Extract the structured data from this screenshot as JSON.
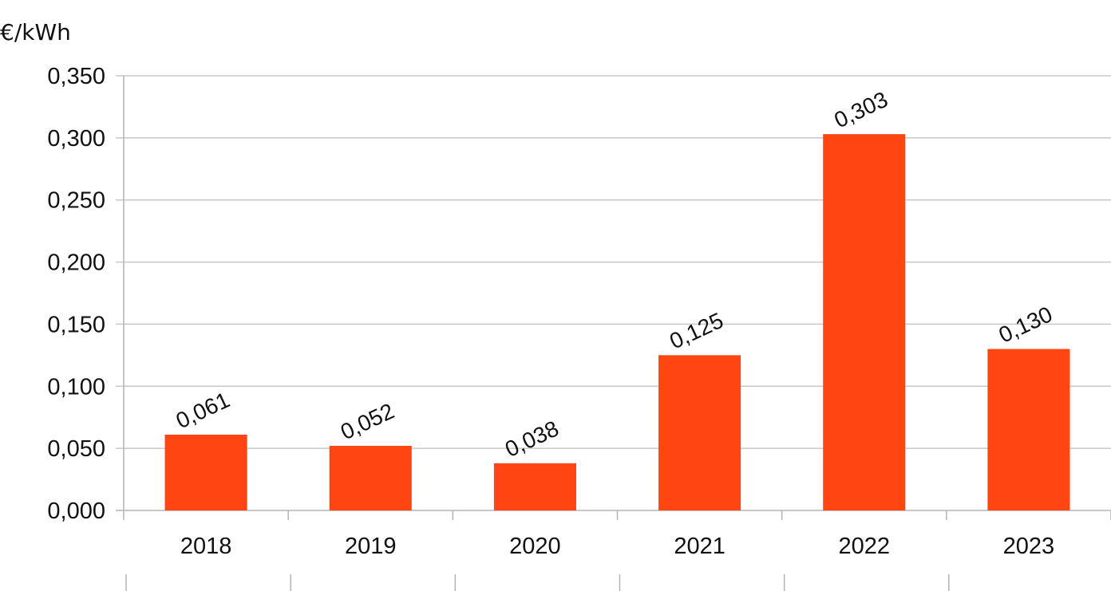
{
  "chart_data": {
    "type": "bar",
    "title": "",
    "xlabel": "",
    "ylabel": "€/kWh",
    "categories": [
      "2018",
      "2019",
      "2020",
      "2021",
      "2022",
      "2023"
    ],
    "values": [
      0.061,
      0.052,
      0.038,
      0.125,
      0.303,
      0.13
    ],
    "data_labels": [
      "0,061",
      "0,052",
      "0,038",
      "0,125",
      "0,303",
      "0,130"
    ],
    "ylim": [
      0,
      0.35
    ],
    "y_ticks": [
      0,
      0.05,
      0.1,
      0.15,
      0.2,
      0.25,
      0.3,
      0.35
    ],
    "y_tick_labels": [
      "0,000",
      "0,050",
      "0,100",
      "0,150",
      "0,200",
      "0,250",
      "0,300",
      "0,350"
    ],
    "grid": true,
    "legend": "none",
    "bar_color": "#ff4512"
  }
}
